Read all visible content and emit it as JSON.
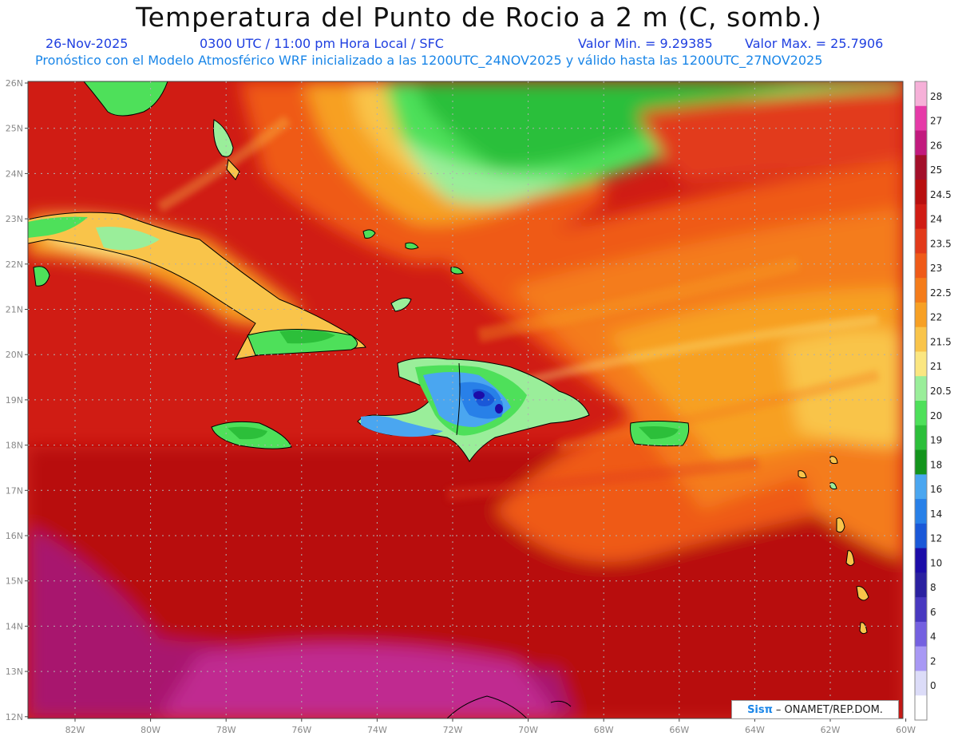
{
  "title": "Temperatura del Punto de Rocio a 2 m (C, somb.)",
  "subtitle": {
    "date": "26-Nov-2025",
    "time": "0300 UTC / 11:00 pm Hora Local / SFC",
    "min_label": "Valor Min. = 9.29385",
    "max_label": "Valor Max. = 25.7906"
  },
  "model_line": "Pronóstico con el Modelo Atmosférico WRF inicializado a las 1200UTC_24NOV2025 y válido hasta las  1200UTC_27NOV2025",
  "lat_labels": [
    "26N",
    "25N",
    "24N",
    "23N",
    "22N",
    "21N",
    "20N",
    "19N",
    "18N",
    "17N",
    "16N",
    "15N",
    "14N",
    "13N",
    "12N"
  ],
  "lon_labels": [
    "82W",
    "80W",
    "78W",
    "76W",
    "74W",
    "72W",
    "70W",
    "68W",
    "66W",
    "64W",
    "62W",
    "60W"
  ],
  "colorbar": {
    "labels": [
      "28",
      "27",
      "26",
      "25",
      "24.5",
      "24",
      "23.5",
      "23",
      "22.5",
      "22",
      "21.5",
      "21",
      "20.5",
      "20",
      "19",
      "18",
      "16",
      "14",
      "12",
      "10",
      "8",
      "6",
      "4",
      "2",
      "0"
    ],
    "colors": [
      "#f6b0d8",
      "#e63aa8",
      "#c21a7e",
      "#a30f2a",
      "#b80f0f",
      "#d01c14",
      "#e23a1a",
      "#ef5a18",
      "#f47c1a",
      "#f7a024",
      "#f9c44a",
      "#fbe680",
      "#9aee9a",
      "#4ee05a",
      "#2cbf3a",
      "#13941c",
      "#4aa6f0",
      "#2880e8",
      "#1a58d8",
      "#1c0ca8",
      "#2a20a0",
      "#4838c0",
      "#7460e0",
      "#a898f4",
      "#dcdcf8",
      "#ffffff"
    ]
  },
  "credit": {
    "logo": "Sisπ",
    "text": "– ONAMET/REP.DOM."
  }
}
